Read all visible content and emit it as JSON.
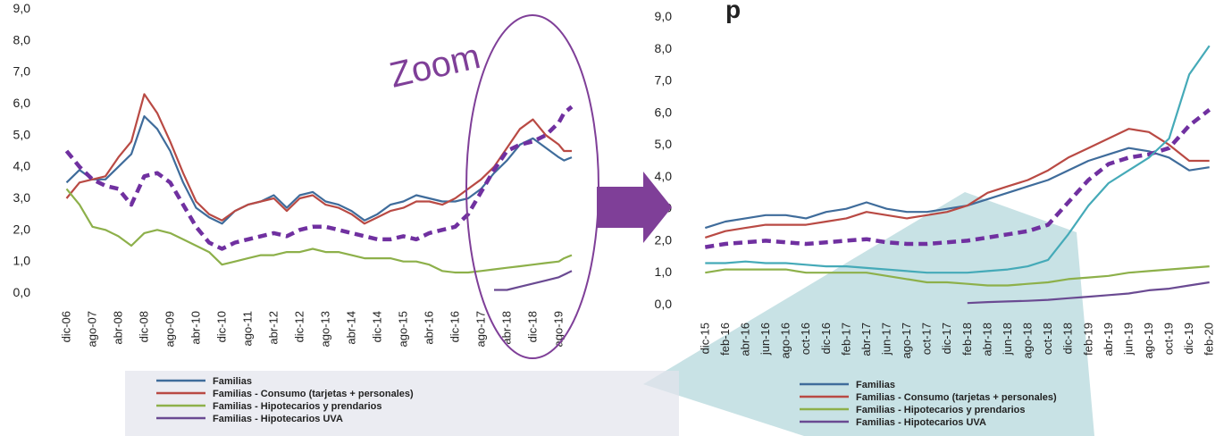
{
  "annotations": {
    "zoom_label": "Zoom",
    "partial_title": "p"
  },
  "colors": {
    "familias": "#3f6c9b",
    "consumo": "#b94a44",
    "hipotecarios": "#8db04a",
    "uva": "#6a4a92",
    "trend": "#7030a0",
    "zoom": "#7f3f98",
    "arrow": "#7f3f98",
    "watermark": "#b6d8dc"
  },
  "chart_data": [
    {
      "type": "line",
      "ylim": [
        0,
        9
      ],
      "yticks": [
        "0,0",
        "1,0",
        "2,0",
        "3,0",
        "4,0",
        "5,0",
        "6,0",
        "7,0",
        "8,0",
        "9,0"
      ],
      "tick_labels": [
        "dic-06",
        "ago-07",
        "abr-08",
        "dic-08",
        "ago-09",
        "abr-10",
        "dic-10",
        "ago-11",
        "abr-12",
        "dic-12",
        "ago-13",
        "abr-14",
        "dic-14",
        "ago-15",
        "abr-16",
        "dic-16",
        "ago-17",
        "abr-18",
        "dic-18",
        "ago-19"
      ],
      "x_count": 20,
      "legend_position": "bottom",
      "series": [
        {
          "name": "Familias",
          "key": "familias",
          "dashed": false,
          "x": [
            0,
            0.5,
            1,
            1.5,
            2,
            2.5,
            3,
            3.5,
            4,
            4.5,
            5,
            5.5,
            6,
            6.5,
            7,
            7.5,
            8,
            8.5,
            9,
            9.5,
            10,
            10.5,
            11,
            11.5,
            12,
            12.5,
            13,
            13.5,
            14,
            14.5,
            15,
            15.5,
            16,
            16.5,
            17,
            17.5,
            18,
            18.5,
            19,
            19.2,
            19.5
          ],
          "y": [
            3.5,
            3.9,
            3.6,
            3.6,
            4.0,
            4.4,
            5.6,
            5.2,
            4.5,
            3.5,
            2.7,
            2.4,
            2.2,
            2.6,
            2.8,
            2.9,
            3.1,
            2.7,
            3.1,
            3.2,
            2.9,
            2.8,
            2.6,
            2.3,
            2.5,
            2.8,
            2.9,
            3.1,
            3.0,
            2.9,
            2.9,
            3.0,
            3.3,
            3.8,
            4.2,
            4.7,
            4.9,
            4.6,
            4.3,
            4.2,
            4.3
          ]
        },
        {
          "name": "Familias - Consumo (tarjetas + personales)",
          "key": "consumo",
          "dashed": false,
          "x": [
            0,
            0.5,
            1,
            1.5,
            2,
            2.5,
            3,
            3.5,
            4,
            4.5,
            5,
            5.5,
            6,
            6.5,
            7,
            7.5,
            8,
            8.5,
            9,
            9.5,
            10,
            10.5,
            11,
            11.5,
            12,
            12.5,
            13,
            13.5,
            14,
            14.5,
            15,
            15.5,
            16,
            16.5,
            17,
            17.5,
            18,
            18.5,
            19,
            19.2,
            19.5
          ],
          "y": [
            3.0,
            3.5,
            3.6,
            3.7,
            4.3,
            4.8,
            6.3,
            5.7,
            4.8,
            3.8,
            2.9,
            2.5,
            2.3,
            2.6,
            2.8,
            2.9,
            3.0,
            2.6,
            3.0,
            3.1,
            2.8,
            2.7,
            2.5,
            2.2,
            2.4,
            2.6,
            2.7,
            2.9,
            2.9,
            2.8,
            3.0,
            3.3,
            3.6,
            4.0,
            4.6,
            5.2,
            5.5,
            5.0,
            4.7,
            4.5,
            4.5
          ]
        },
        {
          "name": "Familias - Hipotecarios y prendarios",
          "key": "hipotecarios",
          "dashed": false,
          "x": [
            0,
            0.5,
            1,
            1.5,
            2,
            2.5,
            3,
            3.5,
            4,
            4.5,
            5,
            5.5,
            6,
            6.5,
            7,
            7.5,
            8,
            8.5,
            9,
            9.5,
            10,
            10.5,
            11,
            11.5,
            12,
            12.5,
            13,
            13.5,
            14,
            14.5,
            15,
            15.5,
            16,
            16.5,
            17,
            17.5,
            18,
            18.5,
            19,
            19.2,
            19.5
          ],
          "y": [
            3.3,
            2.8,
            2.1,
            2.0,
            1.8,
            1.5,
            1.9,
            2.0,
            1.9,
            1.7,
            1.5,
            1.3,
            0.9,
            1.0,
            1.1,
            1.2,
            1.2,
            1.3,
            1.3,
            1.4,
            1.3,
            1.3,
            1.2,
            1.1,
            1.1,
            1.1,
            1.0,
            1.0,
            0.9,
            0.7,
            0.65,
            0.65,
            0.7,
            0.75,
            0.8,
            0.85,
            0.9,
            0.95,
            1.0,
            1.1,
            1.2
          ]
        },
        {
          "name": "Familias - Hipotecarios UVA",
          "key": "uva",
          "dashed": false,
          "x": [
            16.5,
            17,
            17.5,
            18,
            18.5,
            19,
            19.5
          ],
          "y": [
            0.1,
            0.1,
            0.2,
            0.3,
            0.4,
            0.5,
            0.7
          ]
        },
        {
          "name": "",
          "key": "trend",
          "dashed": true,
          "x": [
            0,
            0.5,
            1,
            1.5,
            2,
            2.5,
            3,
            3.5,
            4,
            4.5,
            5,
            5.5,
            6,
            6.5,
            7,
            7.5,
            8,
            8.5,
            9,
            9.5,
            10,
            10.5,
            11,
            11.5,
            12,
            12.5,
            13,
            13.5,
            14,
            14.5,
            15,
            15.5,
            16,
            16.5,
            17,
            17.5,
            18,
            18.5,
            19,
            19.2,
            19.5
          ],
          "y": [
            4.5,
            4.0,
            3.6,
            3.4,
            3.3,
            2.8,
            3.7,
            3.8,
            3.5,
            2.8,
            2.1,
            1.6,
            1.4,
            1.6,
            1.7,
            1.8,
            1.9,
            1.8,
            2.0,
            2.1,
            2.1,
            2.0,
            1.9,
            1.8,
            1.7,
            1.7,
            1.8,
            1.7,
            1.9,
            2.0,
            2.1,
            2.5,
            3.2,
            3.9,
            4.5,
            4.7,
            4.8,
            5.0,
            5.4,
            5.7,
            5.9
          ]
        }
      ]
    },
    {
      "type": "line",
      "ylim": [
        0,
        9
      ],
      "yticks": [
        "0,0",
        "1,0",
        "2,0",
        "3,0",
        "4,0",
        "5,0",
        "6,0",
        "7,0",
        "8,0",
        "9,0"
      ],
      "tick_labels": [
        "dic-15",
        "feb-16",
        "abr-16",
        "jun-16",
        "ago-16",
        "oct-16",
        "dic-16",
        "feb-17",
        "abr-17",
        "jun-17",
        "ago-17",
        "oct-17",
        "dic-17",
        "feb-18",
        "abr-18",
        "jun-18",
        "ago-18",
        "oct-18",
        "dic-18",
        "feb-19",
        "abr-19",
        "jun-19",
        "ago-19",
        "oct-19",
        "dic-19",
        "feb-20"
      ],
      "x_count": 26,
      "legend_position": "bottom",
      "series": [
        {
          "name": "Familias",
          "key": "familias",
          "dashed": false,
          "x": [
            0,
            1,
            2,
            3,
            4,
            5,
            6,
            7,
            8,
            9,
            10,
            11,
            12,
            13,
            14,
            15,
            16,
            17,
            18,
            19,
            20,
            21,
            22,
            23,
            24,
            25
          ],
          "y": [
            2.4,
            2.6,
            2.7,
            2.8,
            2.8,
            2.7,
            2.9,
            3.0,
            3.2,
            3.0,
            2.9,
            2.9,
            3.0,
            3.1,
            3.3,
            3.5,
            3.7,
            3.9,
            4.2,
            4.5,
            4.7,
            4.9,
            4.8,
            4.6,
            4.2,
            4.3
          ]
        },
        {
          "name": "Familias - Consumo (tarjetas + personales)",
          "key": "consumo",
          "dashed": false,
          "x": [
            0,
            1,
            2,
            3,
            4,
            5,
            6,
            7,
            8,
            9,
            10,
            11,
            12,
            13,
            14,
            15,
            16,
            17,
            18,
            19,
            20,
            21,
            22,
            23,
            24,
            25
          ],
          "y": [
            2.1,
            2.3,
            2.4,
            2.5,
            2.5,
            2.5,
            2.6,
            2.7,
            2.9,
            2.8,
            2.7,
            2.8,
            2.9,
            3.1,
            3.5,
            3.7,
            3.9,
            4.2,
            4.6,
            4.9,
            5.2,
            5.5,
            5.4,
            5.0,
            4.5,
            4.5
          ]
        },
        {
          "name": "Familias - Hipotecarios y prendarios",
          "key": "hipotecarios",
          "dashed": false,
          "x": [
            0,
            1,
            2,
            3,
            4,
            5,
            6,
            7,
            8,
            9,
            10,
            11,
            12,
            13,
            14,
            15,
            16,
            17,
            18,
            19,
            20,
            21,
            22,
            23,
            24,
            25
          ],
          "y": [
            1.0,
            1.1,
            1.1,
            1.1,
            1.1,
            1.0,
            1.0,
            1.0,
            1.0,
            0.9,
            0.8,
            0.7,
            0.7,
            0.65,
            0.6,
            0.6,
            0.65,
            0.7,
            0.8,
            0.85,
            0.9,
            1.0,
            1.05,
            1.1,
            1.15,
            1.2
          ]
        },
        {
          "name": "Familias - Hipotecarios UVA",
          "key": "uva",
          "dashed": false,
          "x": [
            13,
            14,
            15,
            16,
            17,
            18,
            19,
            20,
            21,
            22,
            23,
            24,
            25
          ],
          "y": [
            0.05,
            0.08,
            0.1,
            0.12,
            0.15,
            0.2,
            0.25,
            0.3,
            0.35,
            0.45,
            0.5,
            0.6,
            0.7
          ]
        },
        {
          "name": "",
          "key": "trend",
          "dashed": true,
          "x": [
            0,
            1,
            2,
            3,
            4,
            5,
            6,
            7,
            8,
            9,
            10,
            11,
            12,
            13,
            14,
            15,
            16,
            17,
            18,
            19,
            20,
            21,
            22,
            23,
            24,
            25
          ],
          "y": [
            1.8,
            1.9,
            1.95,
            2.0,
            1.95,
            1.9,
            1.95,
            2.0,
            2.05,
            1.95,
            1.9,
            1.9,
            1.95,
            2.0,
            2.1,
            2.2,
            2.3,
            2.5,
            3.2,
            3.9,
            4.4,
            4.6,
            4.7,
            4.9,
            5.6,
            6.1
          ]
        },
        {
          "name": "",
          "key": "familias",
          "dashed": false,
          "light": true,
          "x": [
            0,
            1,
            2,
            3,
            4,
            5,
            6,
            7,
            8,
            9,
            10,
            11,
            12,
            13,
            14,
            15,
            16,
            17,
            18,
            19,
            20,
            21,
            22,
            23,
            24,
            25
          ],
          "y": [
            1.3,
            1.3,
            1.35,
            1.3,
            1.3,
            1.25,
            1.2,
            1.2,
            1.15,
            1.1,
            1.05,
            1.0,
            1.0,
            1.0,
            1.05,
            1.1,
            1.2,
            1.4,
            2.2,
            3.1,
            3.8,
            4.2,
            4.6,
            5.2,
            7.2,
            8.1
          ]
        }
      ]
    }
  ]
}
